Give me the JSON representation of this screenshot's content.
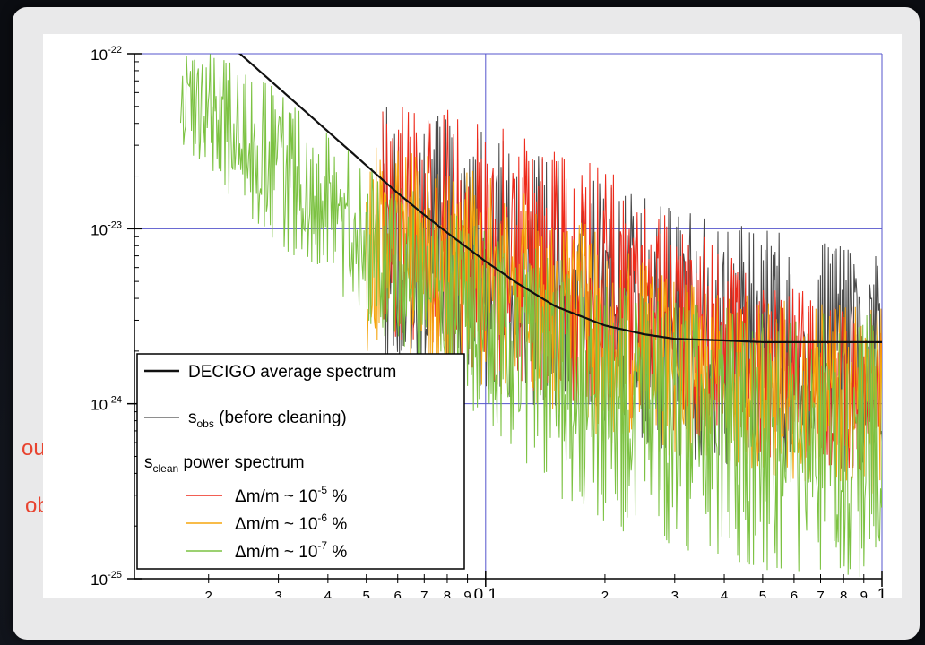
{
  "chart_data": {
    "type": "line",
    "x_scale": "log",
    "y_scale": "log",
    "xlim": [
      0.013,
      1.0
    ],
    "ylim": [
      1e-25,
      1e-22
    ],
    "grid": true,
    "legend_placement": "bottom-left",
    "x_major_ticks": [
      {
        "value": 0.1,
        "label": "0.1"
      },
      {
        "value": 1,
        "label": "1"
      }
    ],
    "x_minor_labels": [
      {
        "value": 0.02,
        "label": "2"
      },
      {
        "value": 0.03,
        "label": "3"
      },
      {
        "value": 0.04,
        "label": "4"
      },
      {
        "value": 0.05,
        "label": "5"
      },
      {
        "value": 0.06,
        "label": "6"
      },
      {
        "value": 0.07,
        "label": "7"
      },
      {
        "value": 0.08,
        "label": "8"
      },
      {
        "value": 0.09,
        "label": "9"
      },
      {
        "value": 0.2,
        "label": "2"
      },
      {
        "value": 0.3,
        "label": "3"
      },
      {
        "value": 0.4,
        "label": "4"
      },
      {
        "value": 0.5,
        "label": "5"
      },
      {
        "value": 0.6,
        "label": "6"
      },
      {
        "value": 0.7,
        "label": "7"
      },
      {
        "value": 0.8,
        "label": "8"
      },
      {
        "value": 0.9,
        "label": "9"
      }
    ],
    "y_ticks": [
      {
        "value": 1e-22,
        "base": "10",
        "exp": "-22"
      },
      {
        "value": 1e-23,
        "base": "10",
        "exp": "-23"
      },
      {
        "value": 1e-24,
        "base": "10",
        "exp": "-24"
      },
      {
        "value": 1e-25,
        "base": "10",
        "exp": "-25"
      }
    ],
    "series": [
      {
        "name": "DECIGO average spectrum",
        "style": "smooth",
        "color": "#111111",
        "x": [
          0.013,
          0.024,
          0.03,
          0.04,
          0.05,
          0.06,
          0.07,
          0.08,
          0.1,
          0.12,
          0.15,
          0.2,
          0.25,
          0.3,
          0.4,
          0.5,
          0.7,
          1.0
        ],
        "y": [
          1.9e-22,
          1e-22,
          6.4e-23,
          3.6e-23,
          2.3e-23,
          1.6e-23,
          1.2e-23,
          9.5e-24,
          6.5e-24,
          4.9e-24,
          3.6e-24,
          2.8e-24,
          2.5e-24,
          2.35e-24,
          2.3e-24,
          2.25e-24,
          2.25e-24,
          2.25e-24
        ]
      },
      {
        "name": "s_obs (before cleaning)",
        "style": "noisy",
        "color": "#4a4a4a",
        "x_start": 0.055,
        "x": [
          0.055,
          0.08,
          0.1,
          0.15,
          0.2,
          0.3,
          0.5,
          1.0
        ],
        "lo": [
          1.8e-24,
          1.5e-24,
          1.2e-24,
          9e-25,
          8e-25,
          5e-25,
          4e-25,
          4e-25
        ],
        "hi": [
          5e-23,
          4.5e-23,
          3.5e-23,
          2.5e-23,
          1.8e-23,
          1.3e-23,
          1e-23,
          7e-24
        ]
      },
      {
        "name": "Δm/m ~ 10⁻⁵ %",
        "style": "noisy",
        "color": "#ee2a1b",
        "x_start": 0.055,
        "x": [
          0.055,
          0.08,
          0.1,
          0.15,
          0.2,
          0.3,
          0.5,
          1.0
        ],
        "lo": [
          2e-24,
          1.6e-24,
          1.4e-24,
          1.1e-24,
          9e-25,
          7e-25,
          5e-25,
          4e-25
        ],
        "hi": [
          5e-23,
          4.8e-23,
          4e-23,
          3e-23,
          2.2e-23,
          1.2e-23,
          5e-24,
          3.5e-24
        ]
      },
      {
        "name": "Δm/m ~ 10⁻⁶ %",
        "style": "noisy",
        "color": "#f5a50e",
        "x_start": 0.05,
        "x": [
          0.05,
          0.08,
          0.1,
          0.15,
          0.2,
          0.3,
          0.5,
          1.0
        ],
        "lo": [
          2e-24,
          1.5e-24,
          1.2e-24,
          9e-25,
          6e-25,
          5e-25,
          4e-25,
          3e-25
        ],
        "hi": [
          3e-23,
          2.5e-23,
          2e-23,
          1.4e-23,
          9e-24,
          5e-24,
          4e-24,
          3.5e-24
        ]
      },
      {
        "name": "Δm/m ~ 10⁻⁷ %",
        "style": "noisy",
        "color": "#7cc242",
        "x_start": 0.017,
        "x": [
          0.017,
          0.02,
          0.025,
          0.03,
          0.04,
          0.05,
          0.07,
          0.1,
          0.15,
          0.2,
          0.3,
          0.5,
          1.0
        ],
        "lo": [
          3e-23,
          2e-23,
          1.2e-23,
          8e-24,
          5e-24,
          3e-24,
          1.5e-24,
          8e-25,
          3e-25,
          2e-25,
          1.5e-25,
          1.1e-25,
          1e-25
        ],
        "hi": [
          1e-22,
          1e-22,
          9e-23,
          6e-23,
          3.5e-23,
          2.4e-23,
          1.5e-23,
          1e-23,
          7e-24,
          5e-24,
          3.8e-24,
          3.4e-24,
          3.3e-24
        ]
      }
    ]
  },
  "legend": {
    "decigo_label": "DECIGO average spectrum",
    "sobs_main": "s",
    "sobs_sub": "obs",
    "sobs_rest": " (before cleaning)",
    "sclean_main": "s",
    "sclean_sub": "clean",
    "sclean_rest": "  power spectrum",
    "dm_prefix": "Δm/m ~ 10",
    "dm_suffix": " %",
    "dm_exps": [
      "-5",
      "-6",
      "-7"
    ]
  },
  "slide_peek": {
    "line1": "ount)",
    "line2": "obs",
    "line2_paren": ")"
  },
  "colors": {
    "grid": "#5555cc",
    "axis": "#000000",
    "decigo": "#111111",
    "sobs": "#4a4a4a",
    "red": "#ee2a1b",
    "orange": "#f5a50e",
    "green": "#7cc242",
    "peek_text": "#e8432f"
  }
}
